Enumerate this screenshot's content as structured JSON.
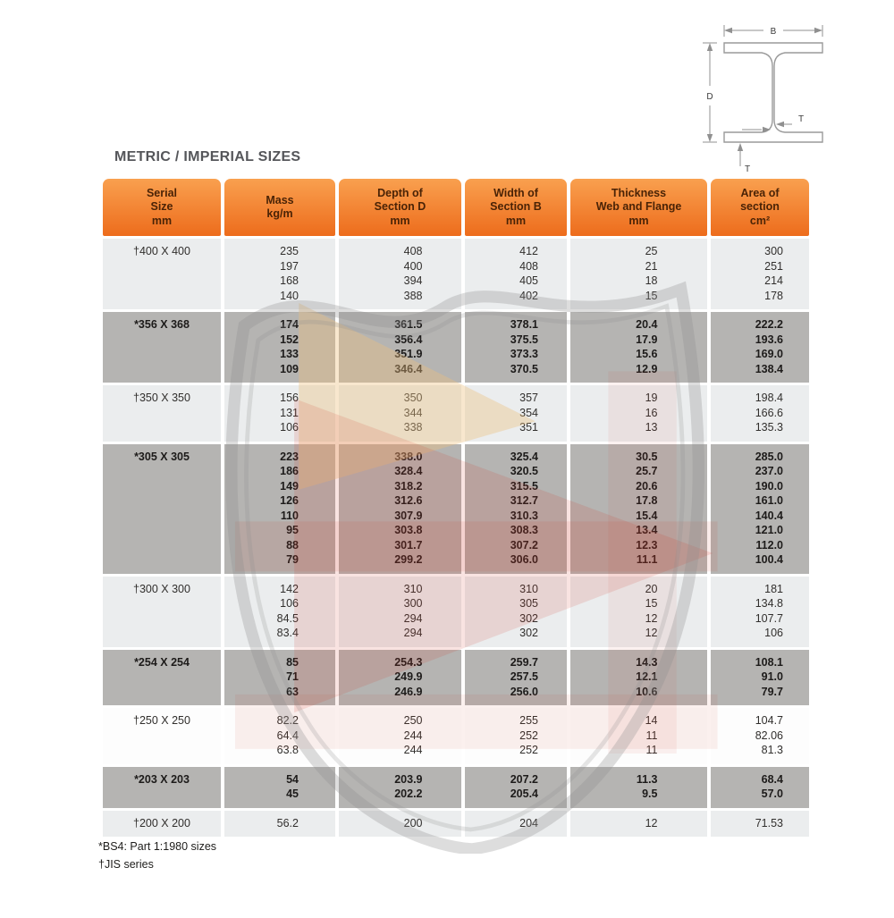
{
  "page": {
    "title": "METRIC / IMPERIAL SIZES",
    "footnotes": [
      "*BS4: Part 1:1980 sizes",
      "†JIS series"
    ]
  },
  "diagram": {
    "labels": {
      "flange_width": "B",
      "depth": "D",
      "web_thickness": "T",
      "flange_thickness": "T"
    }
  },
  "colors": {
    "header_orange_top": "#f9a04f",
    "header_orange_bottom": "#ed6c1c",
    "header_text": "#4a2306",
    "row_light": "#ebedee",
    "row_dark": "#b5b4b2",
    "row_white": "#fdfdfd",
    "watermark_red": "#d23b27",
    "watermark_cream": "#ecbf7d",
    "watermark_gray": "#8e8e8e"
  },
  "table": {
    "columns": [
      {
        "id": "serial-size",
        "lines": [
          "Serial",
          "Size",
          "mm"
        ]
      },
      {
        "id": "mass",
        "lines": [
          "Mass",
          "kg/m"
        ]
      },
      {
        "id": "depth-of-section",
        "lines": [
          "Depth of",
          "Section D",
          "mm"
        ]
      },
      {
        "id": "width-of-section",
        "lines": [
          "Width of",
          "Section B",
          "mm"
        ]
      },
      {
        "id": "thickness-web-flange",
        "lines": [
          "Thickness",
          "Web and Flange",
          "mm"
        ]
      },
      {
        "id": "area-of-section",
        "lines": [
          "Area of",
          "section",
          "cm²"
        ]
      }
    ],
    "groups": [
      {
        "serial": "†400 X 400",
        "style": "light",
        "mass": [
          "235",
          "197",
          "168",
          "140"
        ],
        "depth": [
          "408",
          "400",
          "394",
          "388"
        ],
        "width": [
          "412",
          "408",
          "405",
          "402"
        ],
        "thickness": [
          "25",
          "21",
          "18",
          "15"
        ],
        "area": [
          "300",
          "251",
          "214",
          "178"
        ]
      },
      {
        "serial": "*356 X 368",
        "style": "dark",
        "mass": [
          "174",
          "152",
          "133",
          "109"
        ],
        "depth": [
          "361.5",
          "356.4",
          "351.9",
          "346.4"
        ],
        "width": [
          "378.1",
          "375.5",
          "373.3",
          "370.5"
        ],
        "thickness": [
          "20.4",
          "17.9",
          "15.6",
          "12.9"
        ],
        "area": [
          "222.2",
          "193.6",
          "169.0",
          "138.4"
        ]
      },
      {
        "serial": "†350 X 350",
        "style": "light",
        "mass": [
          "156",
          "131",
          "106"
        ],
        "depth": [
          "350",
          "344",
          "338"
        ],
        "width": [
          "357",
          "354",
          "351"
        ],
        "thickness": [
          "19",
          "16",
          "13"
        ],
        "area": [
          "198.4",
          "166.6",
          "135.3"
        ]
      },
      {
        "serial": "*305 X 305",
        "style": "dark",
        "mass": [
          "223",
          "186",
          "149",
          "126",
          "110",
          "95",
          "88",
          "79"
        ],
        "depth": [
          "338.0",
          "328.4",
          "318.2",
          "312.6",
          "307.9",
          "303.8",
          "301.7",
          "299.2"
        ],
        "width": [
          "325.4",
          "320.5",
          "315.5",
          "312.7",
          "310.3",
          "308.3",
          "307.2",
          "306.0"
        ],
        "thickness": [
          "30.5",
          "25.7",
          "20.6",
          "17.8",
          "15.4",
          "13.4",
          "12.3",
          "11.1"
        ],
        "area": [
          "285.0",
          "237.0",
          "190.0",
          "161.0",
          "140.4",
          "121.0",
          "112.0",
          "100.4"
        ]
      },
      {
        "serial": "†300 X 300",
        "style": "light",
        "mass": [
          "142",
          "106",
          "84.5",
          "83.4"
        ],
        "depth": [
          "310",
          "300",
          "294",
          "294"
        ],
        "width": [
          "310",
          "305",
          "302",
          "302"
        ],
        "thickness": [
          "20",
          "15",
          "12",
          "12"
        ],
        "area": [
          "181",
          "134.8",
          "107.7",
          "106"
        ]
      },
      {
        "serial": "*254 X 254",
        "style": "dark",
        "mass": [
          "85",
          "71",
          "63"
        ],
        "depth": [
          "254.3",
          "249.9",
          "246.9"
        ],
        "width": [
          "259.7",
          "257.5",
          "256.0"
        ],
        "thickness": [
          "14.3",
          "12.1",
          "10.6"
        ],
        "area": [
          "108.1",
          "91.0",
          "79.7"
        ]
      },
      {
        "serial": "†250 X 250",
        "style": "white",
        "mass": [
          "82.2",
          "64.4",
          "63.8"
        ],
        "depth": [
          "250",
          "244",
          "244"
        ],
        "width": [
          "255",
          "252",
          "252"
        ],
        "thickness": [
          "14",
          "11",
          "11"
        ],
        "area": [
          "104.7",
          "82.06",
          "81.3"
        ]
      },
      {
        "serial": "*203 X 203",
        "style": "dark",
        "mass": [
          "54",
          "45"
        ],
        "depth": [
          "203.9",
          "202.2"
        ],
        "width": [
          "207.2",
          "205.4"
        ],
        "thickness": [
          "11.3",
          "9.5"
        ],
        "area": [
          "68.4",
          "57.0"
        ]
      },
      {
        "serial": "†200 X 200",
        "style": "light",
        "mass": [
          "56.2"
        ],
        "depth": [
          "200"
        ],
        "width": [
          "204"
        ],
        "thickness": [
          "12"
        ],
        "area": [
          "71.53"
        ]
      }
    ]
  }
}
